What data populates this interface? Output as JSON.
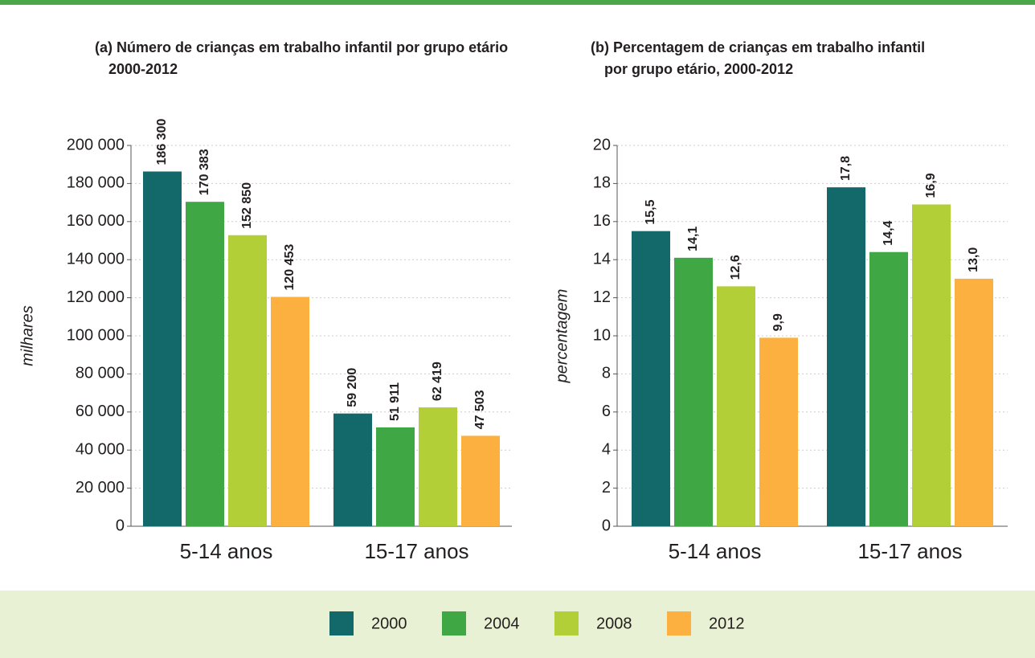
{
  "chart_data": [
    {
      "type": "bar",
      "title": [
        "(a) Número de crianças em trabalho infantil por grupo etário",
        "2000-2012"
      ],
      "ylabel": "milhares",
      "categories": [
        "5-14 anos",
        "15-17 anos"
      ],
      "series": [
        {
          "name": "2000",
          "color": "#13686a",
          "values": [
            186300,
            59200
          ],
          "value_labels": [
            "186 300",
            "59 200"
          ]
        },
        {
          "name": "2004",
          "color": "#3fa845",
          "values": [
            170383,
            51911
          ],
          "value_labels": [
            "170 383",
            "51 911"
          ]
        },
        {
          "name": "2008",
          "color": "#b2cf37",
          "values": [
            152850,
            62419
          ],
          "value_labels": [
            "152 850",
            "62 419"
          ]
        },
        {
          "name": "2012",
          "color": "#fbb040",
          "values": [
            120453,
            47503
          ],
          "value_labels": [
            "120 453",
            "47 503"
          ]
        }
      ],
      "ylim": [
        0,
        200000
      ],
      "yticks": [
        0,
        {
          "value": 20000,
          "label": "20 000"
        },
        {
          "value": 40000,
          "label": "40 000"
        },
        {
          "value": 60000,
          "label": "60 000"
        },
        {
          "value": 80000,
          "label": "80 000"
        },
        {
          "value": 100000,
          "label": "100 000"
        },
        {
          "value": 120000,
          "label": "120 000"
        },
        {
          "value": 140000,
          "label": "140 000"
        },
        {
          "value": 160000,
          "label": "160 000"
        },
        {
          "value": 180000,
          "label": "180 000"
        },
        {
          "value": 200000,
          "label": "200 000"
        }
      ],
      "grid": true
    },
    {
      "type": "bar",
      "title": [
        "(b) Percentagem de crianças em trabalho infantil",
        "por grupo etário, 2000-2012"
      ],
      "ylabel": "percentagem",
      "categories": [
        "5-14 anos",
        "15-17 anos"
      ],
      "series": [
        {
          "name": "2000",
          "color": "#13686a",
          "values": [
            15.5,
            17.8
          ],
          "value_labels": [
            "15,5",
            "17,8"
          ]
        },
        {
          "name": "2004",
          "color": "#3fa845",
          "values": [
            14.1,
            14.4
          ],
          "value_labels": [
            "14,1",
            "14,4"
          ]
        },
        {
          "name": "2008",
          "color": "#b2cf37",
          "values": [
            12.6,
            16.9
          ],
          "value_labels": [
            "12,6",
            "16,9"
          ]
        },
        {
          "name": "2012",
          "color": "#fbb040",
          "values": [
            9.9,
            13.0
          ],
          "value_labels": [
            "9,9",
            "13,0"
          ]
        }
      ],
      "ylim": [
        0,
        20
      ],
      "yticks": [
        0,
        2,
        4,
        6,
        8,
        10,
        12,
        14,
        16,
        18,
        20
      ],
      "grid": true
    }
  ]
}
